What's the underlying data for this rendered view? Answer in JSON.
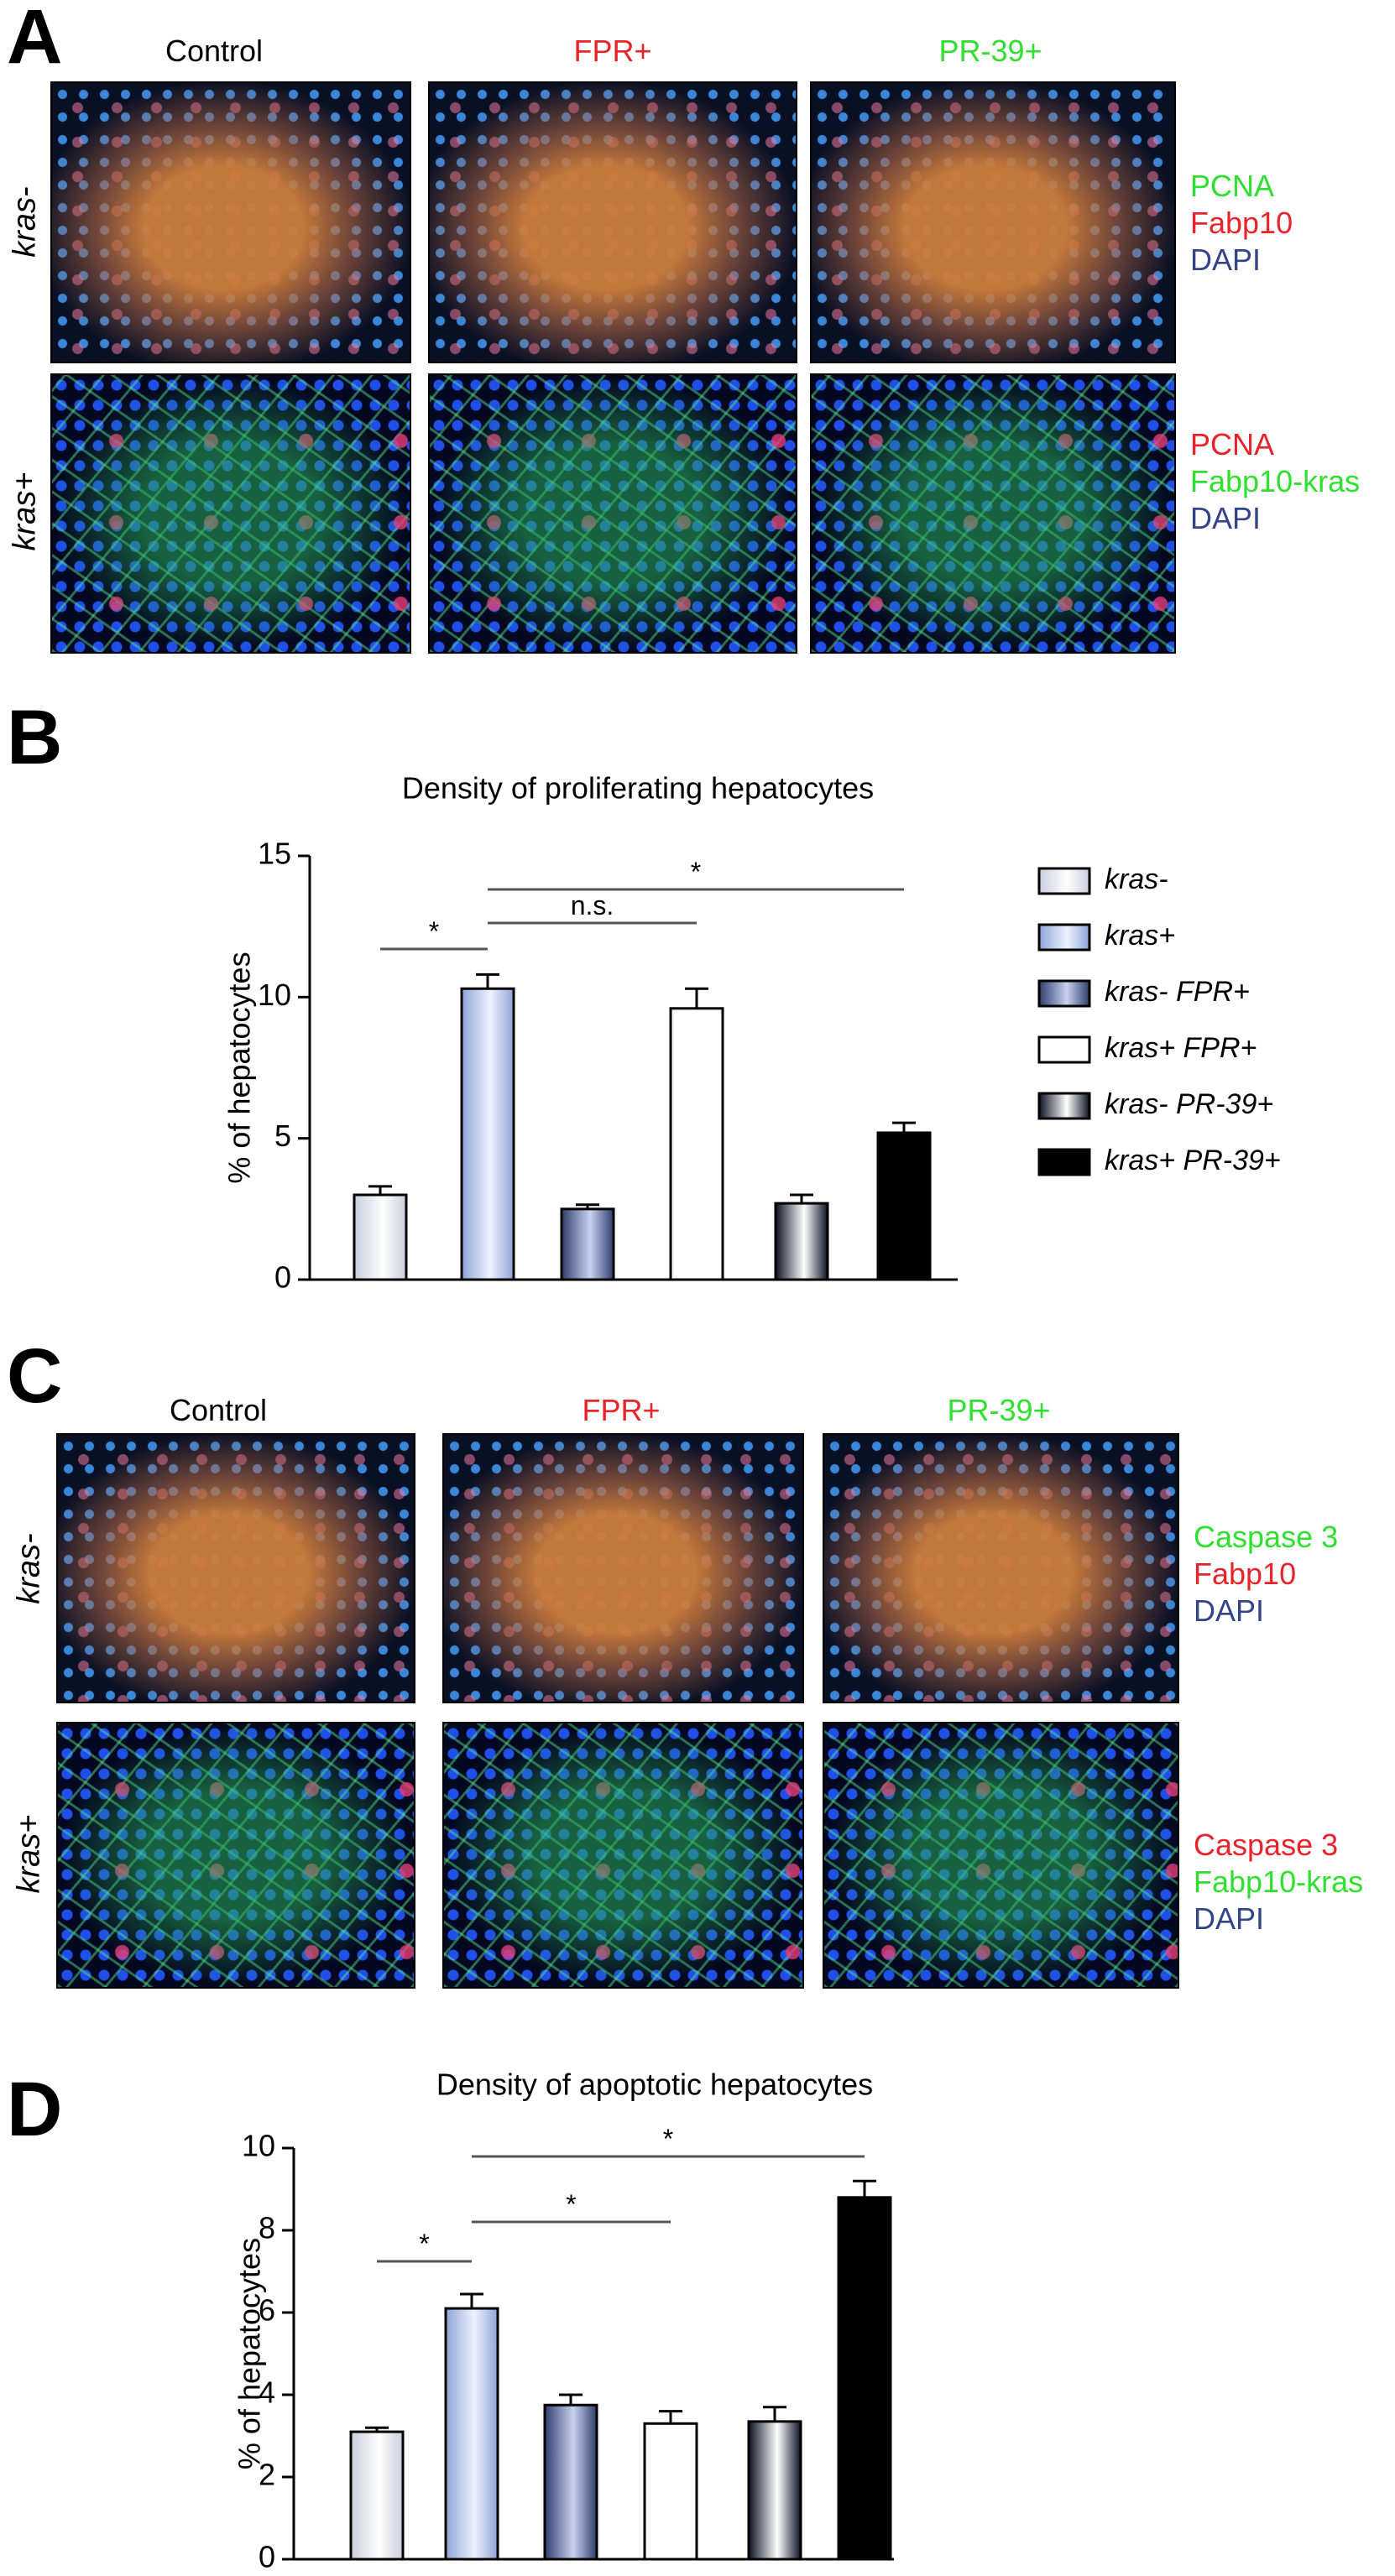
{
  "panel_a": {
    "letter": "A",
    "columns": [
      "Control",
      "FPR+",
      "PR-39+"
    ],
    "rows": [
      "kras-",
      "kras+"
    ],
    "stains": [
      [
        "PCNA",
        "Fabp10",
        "DAPI"
      ],
      [
        "PCNA",
        "Fabp10-kras",
        "DAPI"
      ]
    ]
  },
  "panel_c": {
    "letter": "C",
    "columns": [
      "Control",
      "FPR+",
      "PR-39+"
    ],
    "rows": [
      "kras-",
      "kras+"
    ],
    "stains": [
      [
        "Caspase 3",
        "Fabp10",
        "DAPI"
      ],
      [
        "Caspase 3",
        "Fabp10-kras",
        "DAPI"
      ]
    ]
  },
  "chart_data": [
    {
      "type": "bar",
      "panel_letter": "B",
      "title": "Density of proliferating hepatocytes",
      "y_label": "% of hepatocytes",
      "ylim": [
        0,
        15
      ],
      "yticks": [
        0,
        5,
        10,
        15
      ],
      "series": [
        {
          "name": "kras-",
          "color": "#c9cddd",
          "highlight": "#ffffff",
          "values": [
            3.0
          ],
          "errors": [
            0.3
          ]
        },
        {
          "name": "kras+",
          "color": "#8ea4d8",
          "highlight": "#eef2ff",
          "values": [
            10.3
          ],
          "errors": [
            0.5
          ]
        },
        {
          "name": "kras- FPR+",
          "color": "#2e3d6e",
          "highlight": "#c8d2f0",
          "values": [
            2.5
          ],
          "errors": [
            0.15
          ]
        },
        {
          "name": "kras+ FPR+",
          "color": "#ffffff",
          "highlight": "#ffffff",
          "values": [
            9.6
          ],
          "errors": [
            0.7
          ]
        },
        {
          "name": "kras- PR-39+",
          "color": "#0d1326",
          "highlight": "#ffffff",
          "values": [
            2.7
          ],
          "errors": [
            0.3
          ]
        },
        {
          "name": "kras+ PR-39+",
          "color": "#000000",
          "highlight": "#000000",
          "values": [
            5.2
          ],
          "errors": [
            0.35
          ]
        }
      ],
      "comparisons": [
        {
          "label": "*",
          "between": [
            0,
            1
          ]
        },
        {
          "label": "n.s.",
          "between": [
            1,
            3
          ]
        },
        {
          "label": "*",
          "between": [
            1,
            5
          ]
        }
      ]
    },
    {
      "type": "bar",
      "panel_letter": "D",
      "title": "Density of apoptotic hepatocytes",
      "y_label": "% of hepatocytes",
      "ylim": [
        0,
        10
      ],
      "yticks": [
        0,
        2,
        4,
        6,
        8,
        10
      ],
      "values": [
        3.1,
        6.1,
        3.75,
        3.3,
        3.35,
        8.8
      ],
      "errors": [
        0.1,
        0.35,
        0.25,
        0.3,
        0.35,
        0.4
      ],
      "colors": [
        "#c9cddd",
        "#8ea4d8",
        "#2e3d6e",
        "#ffffff",
        "#0d1326",
        "#000000"
      ],
      "highlights": [
        "#ffffff",
        "#eef2ff",
        "#c8d2f0",
        "#ffffff",
        "#ffffff",
        "#000000"
      ],
      "comparisons": [
        {
          "label": "*",
          "between": [
            0,
            1
          ]
        },
        {
          "label": "*",
          "between": [
            1,
            3
          ]
        },
        {
          "label": "*",
          "between": [
            1,
            5
          ]
        }
      ]
    }
  ]
}
